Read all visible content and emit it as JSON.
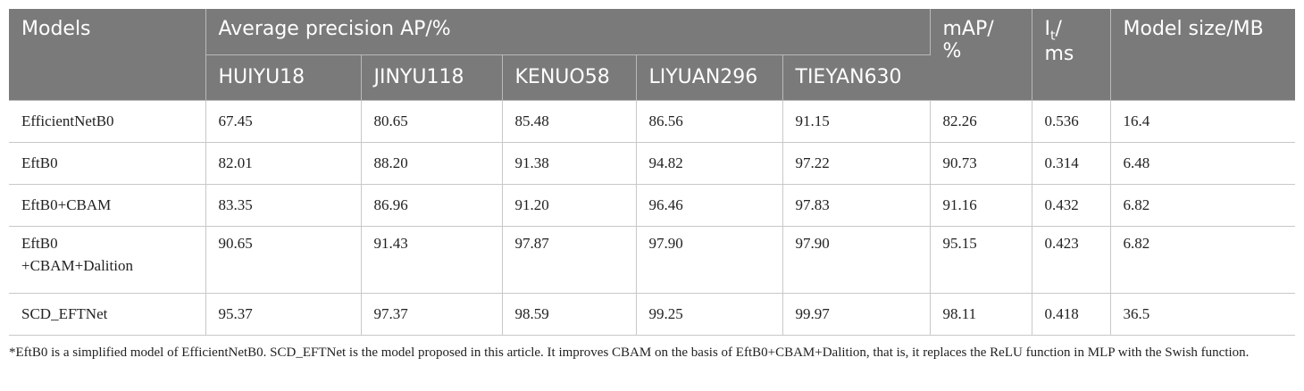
{
  "table": {
    "header": {
      "models": "Models",
      "avg_precision": "Average precision AP/%",
      "map_line1": "mAP/",
      "map_line2": "%",
      "it_main": "I",
      "it_sub": "t",
      "it_slash": "/",
      "it_unit": "ms",
      "model_size": "Model size/MB",
      "classes": [
        "HUIYU18",
        "JINYU118",
        "KENUO58",
        "LIYUAN296",
        "TIEYAN630"
      ]
    },
    "rows": [
      {
        "model_lines": [
          "EfficientNetB0"
        ],
        "ap": [
          "67.45",
          "80.65",
          "85.48",
          "86.56",
          "91.15"
        ],
        "map": "82.26",
        "it": "0.536",
        "size": "16.4"
      },
      {
        "model_lines": [
          "EftB0"
        ],
        "ap": [
          "82.01",
          "88.20",
          "91.38",
          "94.82",
          "97.22"
        ],
        "map": "90.73",
        "it": "0.314",
        "size": "6.48"
      },
      {
        "model_lines": [
          "EftB0+CBAM"
        ],
        "ap": [
          "83.35",
          "86.96",
          "91.20",
          "96.46",
          "97.83"
        ],
        "map": "91.16",
        "it": "0.432",
        "size": "6.82"
      },
      {
        "model_lines": [
          "EftB0",
          "+CBAM+Dalition"
        ],
        "ap": [
          "90.65",
          "91.43",
          "97.87",
          "97.90",
          "97.90"
        ],
        "map": "95.15",
        "it": "0.423",
        "size": "6.82"
      },
      {
        "model_lines": [
          "SCD_EFTNet"
        ],
        "ap": [
          "95.37",
          "97.37",
          "98.59",
          "99.25",
          "99.97"
        ],
        "map": "98.11",
        "it": "0.418",
        "size": "36.5"
      }
    ]
  },
  "footnote": "*EftB0 is a simplified model of EfficientNetB0. SCD_EFTNet is the model proposed in this article. It improves CBAM on the basis of EftB0+CBAM+Dalition, that is, it replaces the ReLU function in MLP with the Swish function.",
  "colors": {
    "header_bg": "#7a7a7a",
    "header_text": "#ffffff",
    "grid": "#c8c8c8"
  }
}
